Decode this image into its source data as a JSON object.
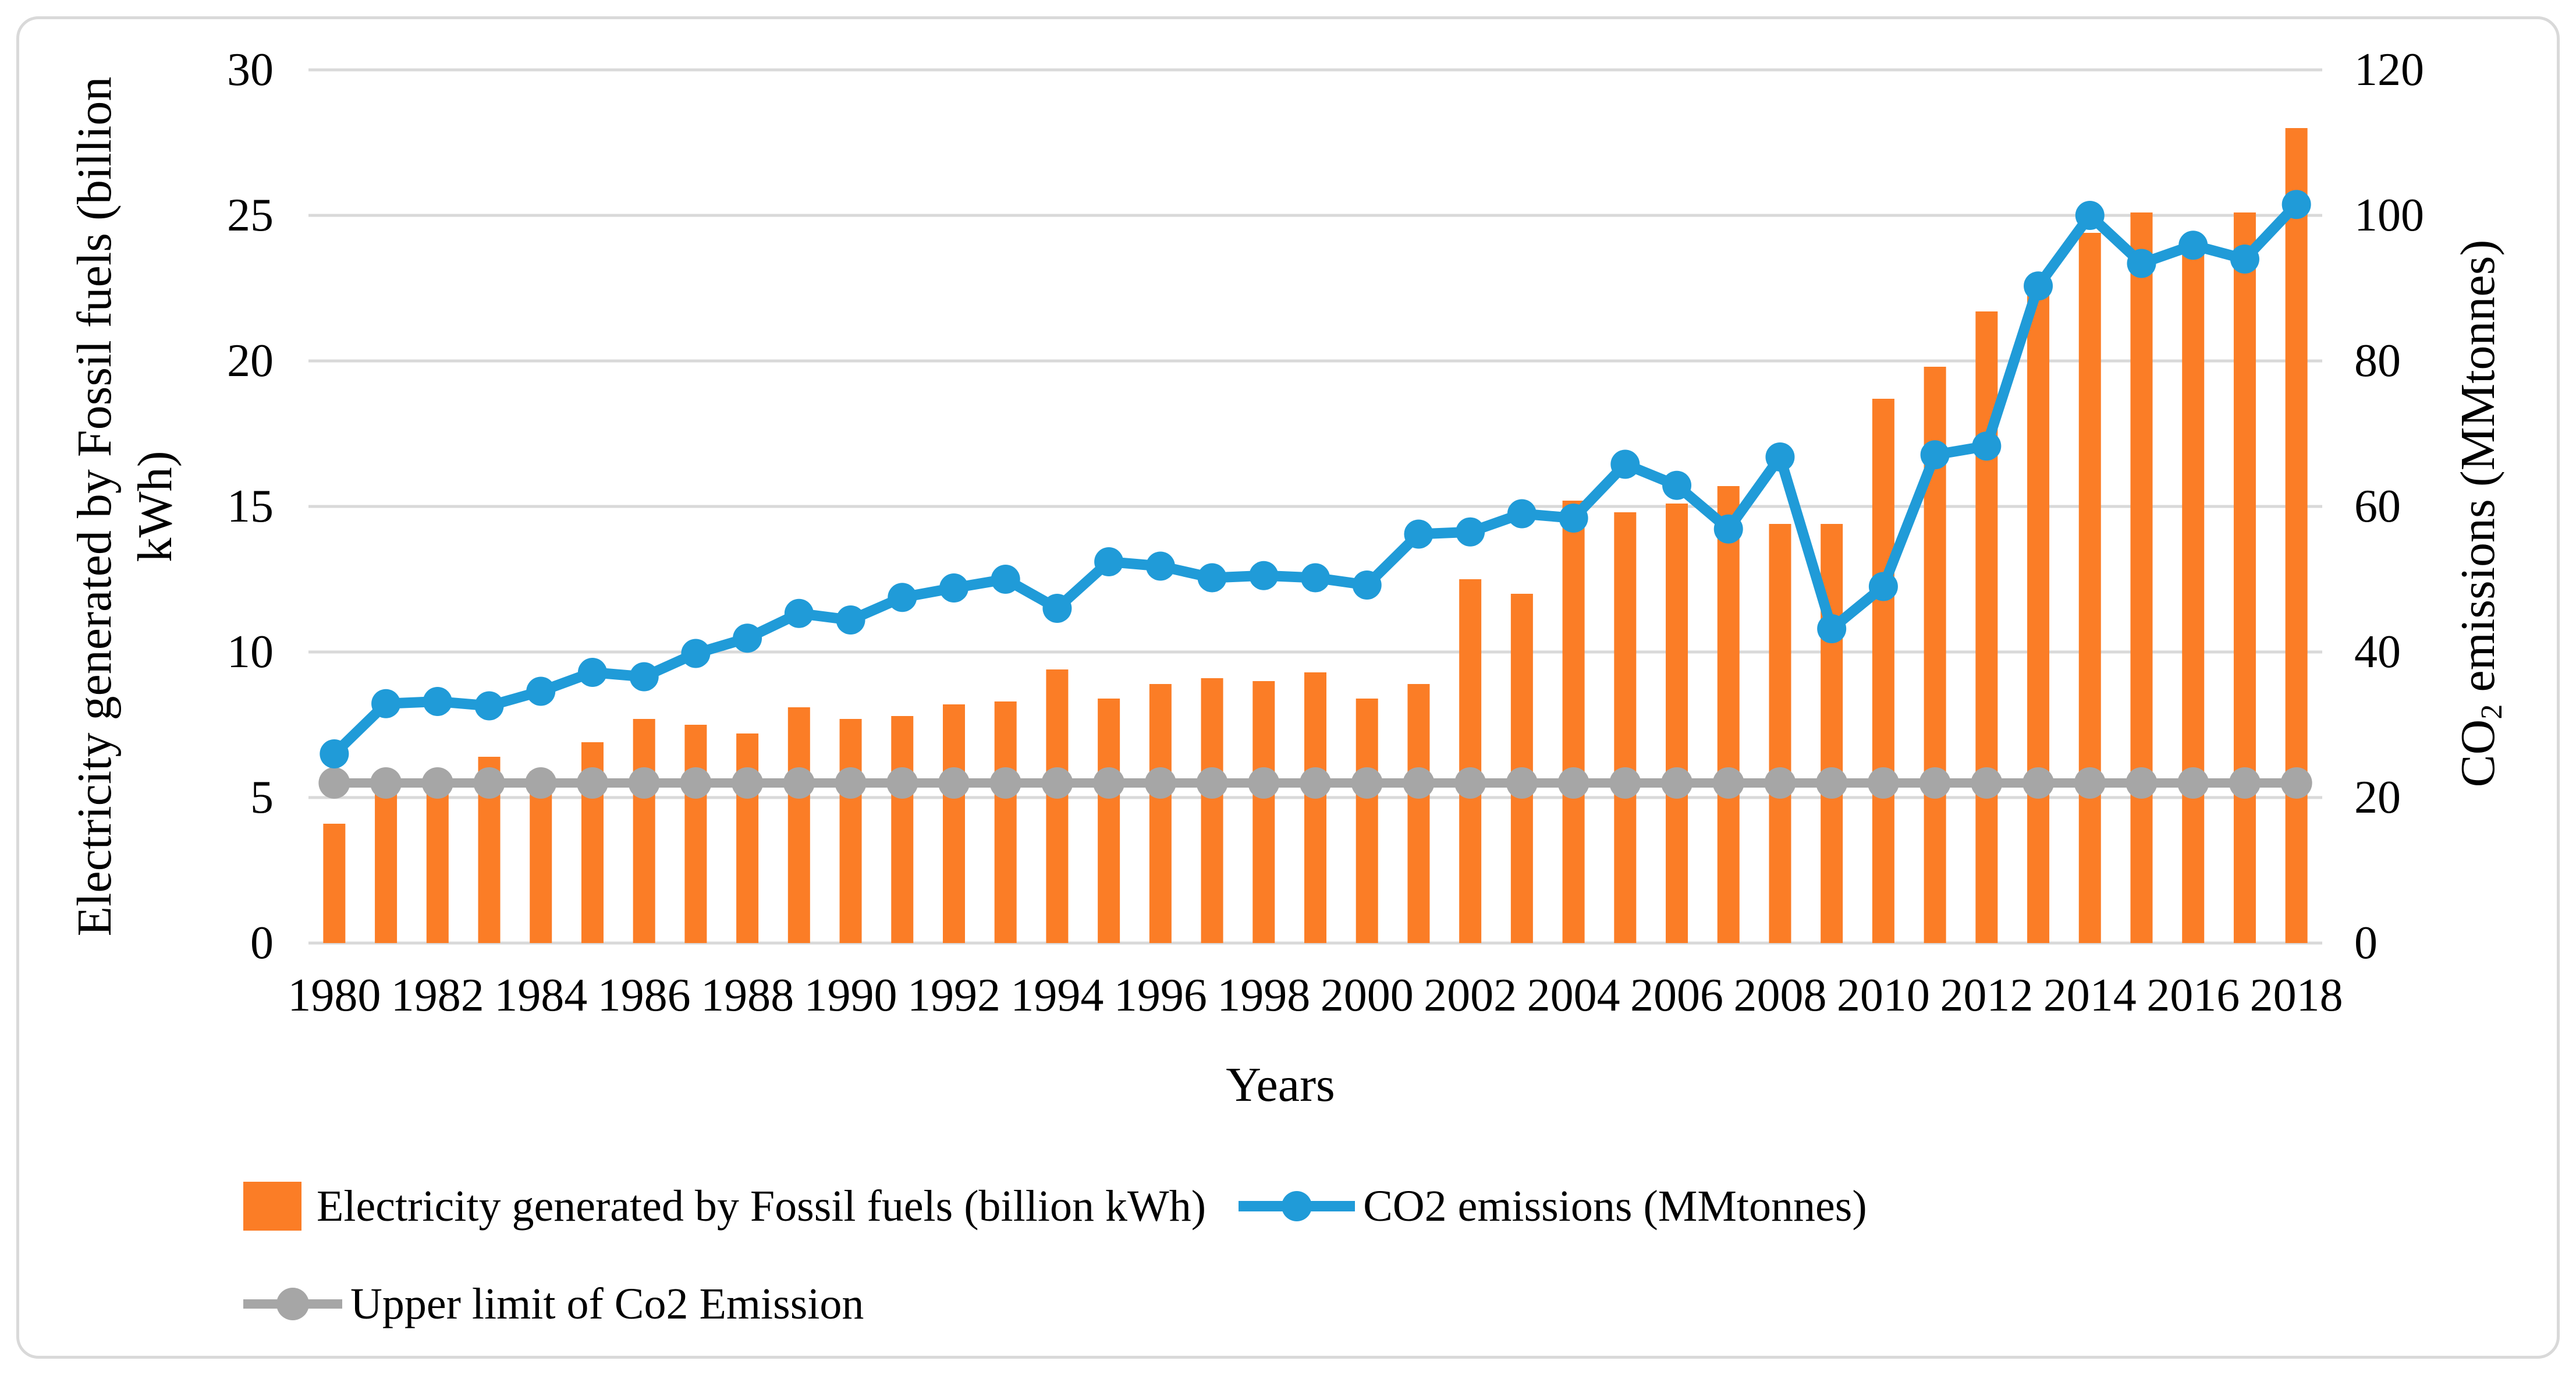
{
  "chart_data": {
    "type": "combo-bar-line",
    "title": "",
    "xlabel": "Years",
    "grid": true,
    "legend_position": "bottom-left",
    "colors": {
      "bar": "#FB7D26",
      "co2_line": "#209BD8",
      "limit_line": "#A6A6A6",
      "gridline": "#D9D9D9",
      "frame_border": "#D9D9D9",
      "text": "#000000"
    },
    "left_axis": {
      "title_lines": [
        "Electricity generated by Fossil fuels (billion",
        "kWh)"
      ],
      "min": 0,
      "max": 30,
      "tick_step": 5,
      "ticks": [
        "0",
        "5",
        "10",
        "15",
        "20",
        "25",
        "30"
      ]
    },
    "right_axis": {
      "title_prefix": "CO",
      "title_sub": "2",
      "title_suffix": " emissions (MMtonnes)",
      "min": 0,
      "max": 120,
      "tick_step": 20,
      "ticks": [
        "0",
        "20",
        "40",
        "60",
        "80",
        "100",
        "120"
      ]
    },
    "categories": [
      1980,
      1981,
      1982,
      1983,
      1984,
      1985,
      1986,
      1987,
      1988,
      1989,
      1990,
      1991,
      1992,
      1993,
      1994,
      1995,
      1996,
      1997,
      1998,
      1999,
      2000,
      2001,
      2002,
      2003,
      2004,
      2005,
      2006,
      2007,
      2008,
      2009,
      2010,
      2011,
      2012,
      2013,
      2014,
      2015,
      2016,
      2017,
      2018
    ],
    "x_tick_labels": [
      "1980",
      "1982",
      "1984",
      "1986",
      "1988",
      "1990",
      "1992",
      "1994",
      "1996",
      "1998",
      "2000",
      "2002",
      "2004",
      "2006",
      "2008",
      "2010",
      "2012",
      "2014",
      "2016",
      "2018"
    ],
    "series": [
      {
        "name": "Electricity generated by Fossil fuels (billion kWh)",
        "type": "bar",
        "axis": "left",
        "color": "#FB7D26",
        "values": [
          4.1,
          5.6,
          5.6,
          6.4,
          5.9,
          6.9,
          7.7,
          7.5,
          7.2,
          8.1,
          7.7,
          7.8,
          8.2,
          8.3,
          9.4,
          8.4,
          8.9,
          9.1,
          9.0,
          9.3,
          8.4,
          8.9,
          12.5,
          12.0,
          15.2,
          14.8,
          15.1,
          15.7,
          14.4,
          14.4,
          18.7,
          19.8,
          21.7,
          22.5,
          24.4,
          25.1,
          24.0,
          25.1,
          28.0
        ]
      },
      {
        "name": "CO2 emissions (MMtonnes)",
        "type": "line",
        "axis": "right",
        "color": "#209BD8",
        "values": [
          26.0,
          32.9,
          33.2,
          32.6,
          34.6,
          37.2,
          36.6,
          39.8,
          41.9,
          45.3,
          44.4,
          47.5,
          48.8,
          50.0,
          46.0,
          52.4,
          51.8,
          50.2,
          50.5,
          50.2,
          49.2,
          56.2,
          56.5,
          59.0,
          58.4,
          65.8,
          62.9,
          56.9,
          66.8,
          43.2,
          49.0,
          67.1,
          68.3,
          90.3,
          100.0,
          93.4,
          95.9,
          94.0,
          101.5
        ]
      },
      {
        "name": "Upper limit of Co2 Emission",
        "type": "line",
        "axis": "right",
        "color": "#A6A6A6",
        "constant_value": 22
      }
    ]
  }
}
